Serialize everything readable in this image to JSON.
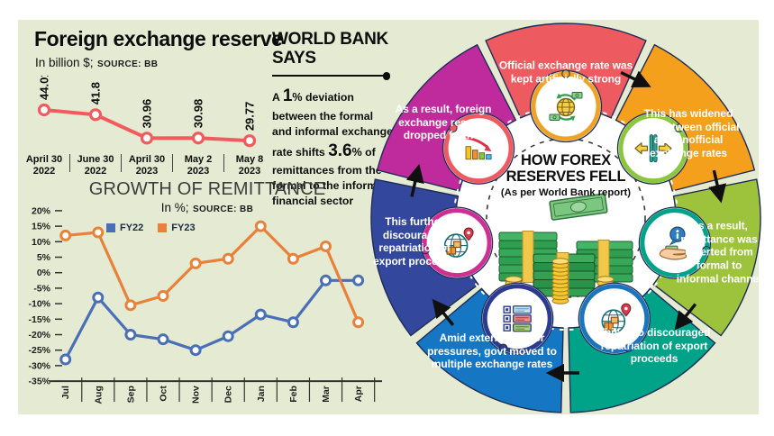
{
  "panel_bg": "#e5ebd3",
  "reserve_chart": {
    "title": "Foreign exchange reserve",
    "unit_label": "In billion $;",
    "source_label": "SOURCE: BB"
  },
  "world_bank": {
    "title_line1": "WORLD BANK",
    "title_line2": "SAYS",
    "statement": {
      "p1": "A ",
      "n1": "1",
      "pct1": "%",
      "p2": " deviation between the formal and informal exchange rate shifts ",
      "n2": "3.6",
      "pct2": "%",
      "p3": " of remittances from the formal to the informal financial sector"
    }
  },
  "growth_chart": {
    "title": "GROWTH OF REMITTANCE",
    "unit_label": "In %;",
    "source_label": "SOURCE: BB"
  },
  "chart_data": [
    {
      "type": "line",
      "title": "Foreign exchange reserve",
      "unit": "In billion $",
      "source": "BB",
      "categories": [
        [
          "April 30",
          "2022"
        ],
        [
          "June 30",
          "2022"
        ],
        [
          "April 30",
          "2023"
        ],
        [
          "May 2",
          "2023"
        ],
        [
          "May 8",
          "2023"
        ]
      ],
      "values": [
        44.01,
        41.8,
        30.96,
        30.98,
        29.77
      ],
      "value_labels": [
        "44.01",
        "41.8",
        "30.96",
        "30.98",
        "29.77"
      ],
      "line_color": "#f15b5e"
    },
    {
      "type": "line",
      "title": "GROWTH OF REMITTANCE",
      "unit": "In %",
      "source": "BB",
      "categories": [
        "Jul",
        "Aug",
        "Sep",
        "Oct",
        "Nov",
        "Dec",
        "Jan",
        "Feb",
        "Mar",
        "Apr"
      ],
      "series": [
        {
          "name": "FY22",
          "color": "#4a6fb5",
          "values": [
            -28,
            -8,
            -20,
            -21.5,
            -25,
            -20.5,
            -13.5,
            -16,
            -2.5,
            -2.5
          ]
        },
        {
          "name": "FY23",
          "color": "#e8813a",
          "values": [
            12,
            13,
            -10.5,
            -7.5,
            3,
            4.5,
            15,
            4.5,
            8.5,
            -16
          ]
        }
      ],
      "ylim": [
        -35,
        20
      ],
      "ytick_step": 5,
      "grid": false,
      "legend_position": "top-left-inside"
    }
  ],
  "wheel": {
    "center_title_line1": "HOW FOREX",
    "center_title_line2": "RESERVES FELL",
    "center_subtitle": "(As per World Bank report)",
    "outline_color": "#1f2c55",
    "segments": [
      {
        "label": "Official exchange rate was kept artificially strong",
        "color": "#ed5a60",
        "ring_color": "#efa228",
        "icon": "currency-exchange-globe-icon"
      },
      {
        "label": "This has widened gap between official and unofficial exchange rates",
        "color": "#f4a01d",
        "ring_color": "#8cc63e",
        "icon": "exchange-gap-icon"
      },
      {
        "label": "As a result, remittance was diverted from formal to informal channel",
        "color": "#9dc33d",
        "ring_color": "#00a288",
        "icon": "info-hand-icon"
      },
      {
        "label": "This also discouraged repatriation of export proceeds",
        "color": "#00a288",
        "ring_color": "#1c75bc",
        "icon": "export-globe-icon"
      },
      {
        "label": "Amid external sector pressures, govt moved to multiple exchange rates",
        "color": "#1577c3",
        "ring_color": "#2b3b8f",
        "icon": "checklist-icon"
      },
      {
        "label": "This further discouraged repatriation of export proceeds",
        "color": "#33489c",
        "ring_color": "#cf2f93",
        "icon": "export-globe-icon"
      },
      {
        "label": "As a result, foreign exchange reserve dropped further",
        "color": "#bf2b9c",
        "ring_color": "#ed5a60",
        "icon": "falling-chart-icon"
      }
    ]
  }
}
